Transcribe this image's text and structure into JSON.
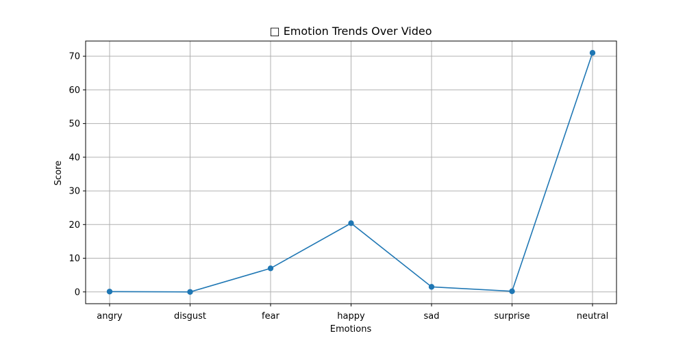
{
  "chart_data": {
    "type": "line",
    "title": "□ Emotion Trends Over Video",
    "xlabel": "Emotions",
    "ylabel": "Score",
    "categories": [
      "angry",
      "disgust",
      "fear",
      "happy",
      "sad",
      "surprise",
      "neutral"
    ],
    "series": [
      {
        "values": [
          0.1,
          0.0,
          7.0,
          20.4,
          1.5,
          0.2,
          71.0
        ],
        "color": "#1f77b4"
      }
    ],
    "ylim": [
      -3.5,
      74.5
    ],
    "yticks": [
      0,
      10,
      20,
      30,
      40,
      50,
      60,
      70
    ],
    "grid": true
  }
}
